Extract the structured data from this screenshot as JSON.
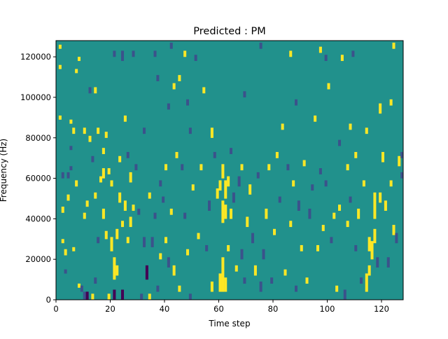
{
  "chart_data": {
    "type": "heatmap",
    "title": "Predicted : PM",
    "xlabel": "Time step",
    "ylabel": "Frequency (Hz)",
    "xlim": [
      0,
      128
    ],
    "ylim": [
      0,
      128000
    ],
    "x_ticks": [
      0,
      20,
      40,
      60,
      80,
      100,
      120
    ],
    "y_ticks": [
      0,
      20000,
      40000,
      60000,
      80000,
      100000,
      120000
    ],
    "y_tick_labels": [
      "0",
      "20000",
      "40000",
      "60000",
      "80000",
      "100000",
      "120000"
    ],
    "n_time_steps": 128,
    "n_freq_bins": 128,
    "background_value": 0,
    "value_levels": [
      -2,
      -1,
      0,
      1
    ],
    "colors": {
      "-2": "#440154",
      "-1": "#3b528b",
      "0": "#21918c",
      "1": "#fde725"
    },
    "highlight_runs": [
      {
        "t": 1,
        "f0": 124,
        "f1": 125,
        "v": 1
      },
      {
        "t": 1,
        "f0": 114,
        "f1": 115,
        "v": 1
      },
      {
        "t": 1,
        "f0": 89,
        "f1": 90,
        "v": 1
      },
      {
        "t": 2,
        "f0": 60,
        "f1": 62,
        "v": -1
      },
      {
        "t": 2,
        "f0": 43,
        "f1": 45,
        "v": 1
      },
      {
        "t": 2,
        "f0": 28,
        "f1": 29,
        "v": 1
      },
      {
        "t": 3,
        "f0": 22,
        "f1": 24,
        "v": 1
      },
      {
        "t": 3,
        "f0": 13,
        "f1": 14,
        "v": -1
      },
      {
        "t": 4,
        "f0": 60,
        "f1": 62,
        "v": -1
      },
      {
        "t": 4,
        "f0": 49,
        "f1": 51,
        "v": 1
      },
      {
        "t": 5,
        "f0": 87,
        "f1": 88,
        "v": 1
      },
      {
        "t": 5,
        "f0": 74,
        "f1": 75,
        "v": -1
      },
      {
        "t": 5,
        "f0": 64,
        "f1": 65,
        "v": -1
      },
      {
        "t": 6,
        "f0": 82,
        "f1": 84,
        "v": 1
      },
      {
        "t": 6,
        "f0": 24,
        "f1": 25,
        "v": 1
      },
      {
        "t": 7,
        "f0": 112,
        "f1": 113,
        "v": 1
      },
      {
        "t": 7,
        "f0": 56,
        "f1": 58,
        "v": 1
      },
      {
        "t": 8,
        "f0": 118,
        "f1": 119,
        "v": 1
      },
      {
        "t": 8,
        "f0": 6,
        "f1": 7,
        "v": 1
      },
      {
        "t": 9,
        "f0": 4,
        "f1": 6,
        "v": -1
      },
      {
        "t": 10,
        "f0": 82,
        "f1": 84,
        "v": 1
      },
      {
        "t": 10,
        "f0": 0,
        "f1": 3,
        "v": -1
      },
      {
        "t": 10,
        "f0": 40,
        "f1": 42,
        "v": 1
      },
      {
        "t": 11,
        "f0": 0,
        "f1": 3,
        "v": -2
      },
      {
        "t": 11,
        "f0": 46,
        "f1": 48,
        "v": 1
      },
      {
        "t": 12,
        "f0": 102,
        "f1": 104,
        "v": -1
      },
      {
        "t": 12,
        "f0": 78,
        "f1": 80,
        "v": 1
      },
      {
        "t": 13,
        "f0": 68,
        "f1": 70,
        "v": -1
      },
      {
        "t": 13,
        "f0": 0,
        "f1": 2,
        "v": 1
      },
      {
        "t": 14,
        "f0": 50,
        "f1": 52,
        "v": 1
      },
      {
        "t": 14,
        "f0": 8,
        "f1": 10,
        "v": -1
      },
      {
        "t": 14,
        "f0": 102,
        "f1": 104,
        "v": 1
      },
      {
        "t": 15,
        "f0": 82,
        "f1": 84,
        "v": 1
      },
      {
        "t": 15,
        "f0": 28,
        "f1": 30,
        "v": -1
      },
      {
        "t": 16,
        "f0": 58,
        "f1": 60,
        "v": 1
      },
      {
        "t": 17,
        "f0": 72,
        "f1": 74,
        "v": 1
      },
      {
        "t": 17,
        "f0": 60,
        "f1": 64,
        "v": 1
      },
      {
        "t": 17,
        "f0": 40,
        "f1": 44,
        "v": 1
      },
      {
        "t": 18,
        "f0": 80,
        "f1": 82,
        "v": 1
      },
      {
        "t": 18,
        "f0": 30,
        "f1": 33,
        "v": 1
      },
      {
        "t": 19,
        "f0": 62,
        "f1": 64,
        "v": 1
      },
      {
        "t": 19,
        "f0": 0,
        "f1": 2,
        "v": 1
      },
      {
        "t": 20,
        "f0": 56,
        "f1": 58,
        "v": 1
      },
      {
        "t": 20,
        "f0": 24,
        "f1": 30,
        "v": 1
      },
      {
        "t": 21,
        "f0": 120,
        "f1": 122,
        "v": -1
      },
      {
        "t": 21,
        "f0": 10,
        "f1": 20,
        "v": 1
      },
      {
        "t": 21,
        "f0": 0,
        "f1": 4,
        "v": -2
      },
      {
        "t": 22,
        "f0": 30,
        "f1": 34,
        "v": 1
      },
      {
        "t": 22,
        "f0": 12,
        "f1": 16,
        "v": 1
      },
      {
        "t": 23,
        "f0": 68,
        "f1": 70,
        "v": 1
      },
      {
        "t": 23,
        "f0": 48,
        "f1": 52,
        "v": 1
      },
      {
        "t": 24,
        "f0": 118,
        "f1": 122,
        "v": -1
      },
      {
        "t": 24,
        "f0": 36,
        "f1": 38,
        "v": 1
      },
      {
        "t": 24,
        "f0": 0,
        "f1": 4,
        "v": -2
      },
      {
        "t": 25,
        "f0": 88,
        "f1": 90,
        "v": 1
      },
      {
        "t": 25,
        "f0": 44,
        "f1": 48,
        "v": 1
      },
      {
        "t": 26,
        "f0": 70,
        "f1": 72,
        "v": -1
      },
      {
        "t": 26,
        "f0": 28,
        "f1": 30,
        "v": 1
      },
      {
        "t": 27,
        "f0": 58,
        "f1": 62,
        "v": 1
      },
      {
        "t": 27,
        "f0": 36,
        "f1": 40,
        "v": 1
      },
      {
        "t": 28,
        "f0": 120,
        "f1": 122,
        "v": -1
      },
      {
        "t": 28,
        "f0": 44,
        "f1": 46,
        "v": 1
      },
      {
        "t": 29,
        "f0": 64,
        "f1": 66,
        "v": -1
      },
      {
        "t": 30,
        "f0": 42,
        "f1": 44,
        "v": -1
      },
      {
        "t": 31,
        "f0": 0,
        "f1": 2,
        "v": -1
      },
      {
        "t": 32,
        "f0": 82,
        "f1": 84,
        "v": -1
      },
      {
        "t": 32,
        "f0": 26,
        "f1": 30,
        "v": -1
      },
      {
        "t": 33,
        "f0": 10,
        "f1": 16,
        "v": -2
      },
      {
        "t": 34,
        "f0": 50,
        "f1": 52,
        "v": 1
      },
      {
        "t": 34,
        "f0": 0,
        "f1": 2,
        "v": 1
      },
      {
        "t": 35,
        "f0": 26,
        "f1": 30,
        "v": -1
      },
      {
        "t": 36,
        "f0": 120,
        "f1": 122,
        "v": -1
      },
      {
        "t": 36,
        "f0": 40,
        "f1": 42,
        "v": -1
      },
      {
        "t": 37,
        "f0": 108,
        "f1": 110,
        "v": -1
      },
      {
        "t": 37,
        "f0": 4,
        "f1": 6,
        "v": -1
      },
      {
        "t": 38,
        "f0": 56,
        "f1": 58,
        "v": -1
      },
      {
        "t": 38,
        "f0": 20,
        "f1": 22,
        "v": 1
      },
      {
        "t": 39,
        "f0": 48,
        "f1": 50,
        "v": -1
      },
      {
        "t": 40,
        "f0": 64,
        "f1": 66,
        "v": 1
      },
      {
        "t": 40,
        "f0": 28,
        "f1": 30,
        "v": 1
      },
      {
        "t": 41,
        "f0": 94,
        "f1": 96,
        "v": -1
      },
      {
        "t": 41,
        "f0": 16,
        "f1": 20,
        "v": -1
      },
      {
        "t": 42,
        "f0": 124,
        "f1": 126,
        "v": -1
      },
      {
        "t": 42,
        "f0": 42,
        "f1": 44,
        "v": 1
      },
      {
        "t": 43,
        "f0": 104,
        "f1": 106,
        "v": 1
      },
      {
        "t": 43,
        "f0": 12,
        "f1": 16,
        "v": 1
      },
      {
        "t": 44,
        "f0": 70,
        "f1": 72,
        "v": 1
      },
      {
        "t": 45,
        "f0": 108,
        "f1": 110,
        "v": 1
      },
      {
        "t": 45,
        "f0": 4,
        "f1": 6,
        "v": 1
      },
      {
        "t": 46,
        "f0": 64,
        "f1": 66,
        "v": -1
      },
      {
        "t": 47,
        "f0": 120,
        "f1": 122,
        "v": 1
      },
      {
        "t": 47,
        "f0": 40,
        "f1": 42,
        "v": -1
      },
      {
        "t": 48,
        "f0": 96,
        "f1": 98,
        "v": -1
      },
      {
        "t": 48,
        "f0": 22,
        "f1": 24,
        "v": 1
      },
      {
        "t": 49,
        "f0": 82,
        "f1": 84,
        "v": -1
      },
      {
        "t": 49,
        "f0": 0,
        "f1": 2,
        "v": -1
      },
      {
        "t": 50,
        "f0": 54,
        "f1": 56,
        "v": 1
      },
      {
        "t": 51,
        "f0": 118,
        "f1": 120,
        "v": -1
      },
      {
        "t": 52,
        "f0": 30,
        "f1": 32,
        "v": 1
      },
      {
        "t": 53,
        "f0": 64,
        "f1": 66,
        "v": 1
      },
      {
        "t": 54,
        "f0": 102,
        "f1": 104,
        "v": 1
      },
      {
        "t": 55,
        "f0": 24,
        "f1": 26,
        "v": -1
      },
      {
        "t": 56,
        "f0": 44,
        "f1": 48,
        "v": -1
      },
      {
        "t": 57,
        "f0": 80,
        "f1": 84,
        "v": 1
      },
      {
        "t": 57,
        "f0": 4,
        "f1": 8,
        "v": 1
      },
      {
        "t": 58,
        "f0": 70,
        "f1": 72,
        "v": -1
      },
      {
        "t": 59,
        "f0": 50,
        "f1": 54,
        "v": 1
      },
      {
        "t": 60,
        "f0": 54,
        "f1": 58,
        "v": 1
      },
      {
        "t": 60,
        "f0": 4,
        "f1": 12,
        "v": 1
      },
      {
        "t": 61,
        "f0": 60,
        "f1": 66,
        "v": 1
      },
      {
        "t": 61,
        "f0": 38,
        "f1": 48,
        "v": 1
      },
      {
        "t": 61,
        "f0": 4,
        "f1": 20,
        "v": 1
      },
      {
        "t": 62,
        "f0": 50,
        "f1": 58,
        "v": 1
      },
      {
        "t": 62,
        "f0": 40,
        "f1": 46,
        "v": 1
      },
      {
        "t": 62,
        "f0": 4,
        "f1": 10,
        "v": 1
      },
      {
        "t": 63,
        "f0": 56,
        "f1": 60,
        "v": 1
      },
      {
        "t": 63,
        "f0": 24,
        "f1": 26,
        "v": 1
      },
      {
        "t": 64,
        "f0": 72,
        "f1": 74,
        "v": -1
      },
      {
        "t": 64,
        "f0": 40,
        "f1": 44,
        "v": 1
      },
      {
        "t": 65,
        "f0": 48,
        "f1": 52,
        "v": -1
      },
      {
        "t": 66,
        "f0": 14,
        "f1": 16,
        "v": 1
      },
      {
        "t": 67,
        "f0": 56,
        "f1": 60,
        "v": -1
      },
      {
        "t": 68,
        "f0": 64,
        "f1": 66,
        "v": 1
      },
      {
        "t": 68,
        "f0": 20,
        "f1": 24,
        "v": -1
      },
      {
        "t": 69,
        "f0": 100,
        "f1": 102,
        "v": -1
      },
      {
        "t": 69,
        "f0": 8,
        "f1": 10,
        "v": -1
      },
      {
        "t": 70,
        "f0": 36,
        "f1": 40,
        "v": 1
      },
      {
        "t": 71,
        "f0": 52,
        "f1": 56,
        "v": 1
      },
      {
        "t": 72,
        "f0": 28,
        "f1": 32,
        "v": -1
      },
      {
        "t": 73,
        "f0": 12,
        "f1": 16,
        "v": 1
      },
      {
        "t": 74,
        "f0": 60,
        "f1": 62,
        "v": -1
      },
      {
        "t": 75,
        "f0": 124,
        "f1": 126,
        "v": -1
      },
      {
        "t": 75,
        "f0": 4,
        "f1": 8,
        "v": -1
      },
      {
        "t": 76,
        "f0": 20,
        "f1": 24,
        "v": -1
      },
      {
        "t": 77,
        "f0": 40,
        "f1": 44,
        "v": 1
      },
      {
        "t": 78,
        "f0": 64,
        "f1": 66,
        "v": 1
      },
      {
        "t": 79,
        "f0": 8,
        "f1": 10,
        "v": -1
      },
      {
        "t": 80,
        "f0": 32,
        "f1": 34,
        "v": 1
      },
      {
        "t": 81,
        "f0": 70,
        "f1": 72,
        "v": 1
      },
      {
        "t": 82,
        "f0": 48,
        "f1": 50,
        "v": -1
      },
      {
        "t": 83,
        "f0": 84,
        "f1": 86,
        "v": 1
      },
      {
        "t": 84,
        "f0": 12,
        "f1": 14,
        "v": 1
      },
      {
        "t": 85,
        "f0": 64,
        "f1": 66,
        "v": -1
      },
      {
        "t": 86,
        "f0": 120,
        "f1": 122,
        "v": 1
      },
      {
        "t": 86,
        "f0": 36,
        "f1": 38,
        "v": 1
      },
      {
        "t": 87,
        "f0": 56,
        "f1": 58,
        "v": 1
      },
      {
        "t": 88,
        "f0": 96,
        "f1": 98,
        "v": -1
      },
      {
        "t": 88,
        "f0": 4,
        "f1": 6,
        "v": -1
      },
      {
        "t": 89,
        "f0": 44,
        "f1": 48,
        "v": -1
      },
      {
        "t": 90,
        "f0": 24,
        "f1": 26,
        "v": 1
      },
      {
        "t": 91,
        "f0": 66,
        "f1": 68,
        "v": 1
      },
      {
        "t": 92,
        "f0": 8,
        "f1": 10,
        "v": 1
      },
      {
        "t": 93,
        "f0": 40,
        "f1": 44,
        "v": -1
      },
      {
        "t": 94,
        "f0": 54,
        "f1": 56,
        "v": -1
      },
      {
        "t": 95,
        "f0": 88,
        "f1": 90,
        "v": 1
      },
      {
        "t": 96,
        "f0": 24,
        "f1": 26,
        "v": 1
      },
      {
        "t": 97,
        "f0": 122,
        "f1": 124,
        "v": 1
      },
      {
        "t": 97,
        "f0": 62,
        "f1": 64,
        "v": -1
      },
      {
        "t": 98,
        "f0": 34,
        "f1": 36,
        "v": 1
      },
      {
        "t": 99,
        "f0": 118,
        "f1": 120,
        "v": -1
      },
      {
        "t": 99,
        "f0": 56,
        "f1": 58,
        "v": -1
      },
      {
        "t": 100,
        "f0": 104,
        "f1": 106,
        "v": 1
      },
      {
        "t": 101,
        "f0": 28,
        "f1": 30,
        "v": -1
      },
      {
        "t": 102,
        "f0": 40,
        "f1": 42,
        "v": 1
      },
      {
        "t": 103,
        "f0": 4,
        "f1": 6,
        "v": 1
      },
      {
        "t": 104,
        "f0": 76,
        "f1": 78,
        "v": -1
      },
      {
        "t": 104,
        "f0": 44,
        "f1": 46,
        "v": 1
      },
      {
        "t": 105,
        "f0": 118,
        "f1": 120,
        "v": 1
      },
      {
        "t": 106,
        "f0": 0,
        "f1": 4,
        "v": -1
      },
      {
        "t": 107,
        "f0": 64,
        "f1": 66,
        "v": 1
      },
      {
        "t": 107,
        "f0": 36,
        "f1": 38,
        "v": 1
      },
      {
        "t": 108,
        "f0": 84,
        "f1": 86,
        "v": 1
      },
      {
        "t": 108,
        "f0": 48,
        "f1": 50,
        "v": -1
      },
      {
        "t": 109,
        "f0": 120,
        "f1": 122,
        "v": -1
      },
      {
        "t": 110,
        "f0": 70,
        "f1": 72,
        "v": 1
      },
      {
        "t": 110,
        "f0": 24,
        "f1": 26,
        "v": -1
      },
      {
        "t": 111,
        "f0": 40,
        "f1": 44,
        "v": 1
      },
      {
        "t": 112,
        "f0": 8,
        "f1": 10,
        "v": -1
      },
      {
        "t": 113,
        "f0": 56,
        "f1": 58,
        "v": 1
      },
      {
        "t": 114,
        "f0": 82,
        "f1": 84,
        "v": 1
      },
      {
        "t": 114,
        "f0": 4,
        "f1": 12,
        "v": 1
      },
      {
        "t": 115,
        "f0": 24,
        "f1": 30,
        "v": 1
      },
      {
        "t": 115,
        "f0": 12,
        "f1": 16,
        "v": 1
      },
      {
        "t": 116,
        "f0": 20,
        "f1": 28,
        "v": 1
      },
      {
        "t": 117,
        "f0": 40,
        "f1": 52,
        "v": 1
      },
      {
        "t": 117,
        "f0": 28,
        "f1": 34,
        "v": 1
      },
      {
        "t": 118,
        "f0": 16,
        "f1": 20,
        "v": -1
      },
      {
        "t": 119,
        "f0": 92,
        "f1": 96,
        "v": 1
      },
      {
        "t": 119,
        "f0": 48,
        "f1": 52,
        "v": 1
      },
      {
        "t": 120,
        "f0": 68,
        "f1": 72,
        "v": 1
      },
      {
        "t": 121,
        "f0": 44,
        "f1": 48,
        "v": 1
      },
      {
        "t": 122,
        "f0": 16,
        "f1": 20,
        "v": -1
      },
      {
        "t": 123,
        "f0": 96,
        "f1": 98,
        "v": 1
      },
      {
        "t": 123,
        "f0": 56,
        "f1": 58,
        "v": 1
      },
      {
        "t": 124,
        "f0": 124,
        "f1": 126,
        "v": 1
      },
      {
        "t": 124,
        "f0": 32,
        "f1": 36,
        "v": 1
      },
      {
        "t": 125,
        "f0": 28,
        "f1": 32,
        "v": -1
      },
      {
        "t": 126,
        "f0": 66,
        "f1": 70,
        "v": 1
      },
      {
        "t": 127,
        "f0": 70,
        "f1": 72,
        "v": -1
      },
      {
        "t": 127,
        "f0": 60,
        "f1": 62,
        "v": -1
      }
    ]
  }
}
